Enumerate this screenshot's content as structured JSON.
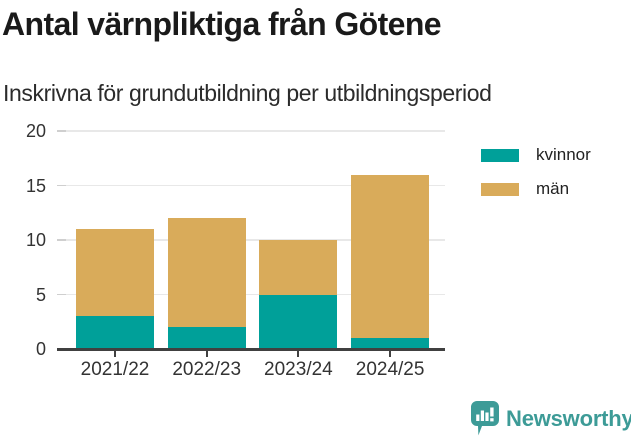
{
  "header": {
    "title": "Antal värnpliktiga från Götene",
    "subtitle": "Inskrivna för grundutbildning per utbildningsperiod"
  },
  "chart_data": {
    "type": "bar",
    "stacked": true,
    "title": "Antal värnpliktiga från Götene",
    "subtitle": "Inskrivna för grundutbildning per utbildningsperiod",
    "categories": [
      "2021/22",
      "2022/23",
      "2023/24",
      "2024/25"
    ],
    "series": [
      {
        "name": "kvinnor",
        "color": "#00a099",
        "values": [
          3,
          2,
          5,
          1
        ]
      },
      {
        "name": "män",
        "color": "#d9ab5a",
        "values": [
          8,
          10,
          5,
          15
        ]
      }
    ],
    "totals": [
      11,
      12,
      10,
      16
    ],
    "xlabel": "",
    "ylabel": "",
    "ylim": [
      0,
      20
    ],
    "yticks": [
      0,
      5,
      10,
      15,
      20
    ],
    "grid": true,
    "legend_position": "right"
  },
  "footer": {
    "brand": "Newsworthy",
    "brand_color": "#3d9b97"
  }
}
